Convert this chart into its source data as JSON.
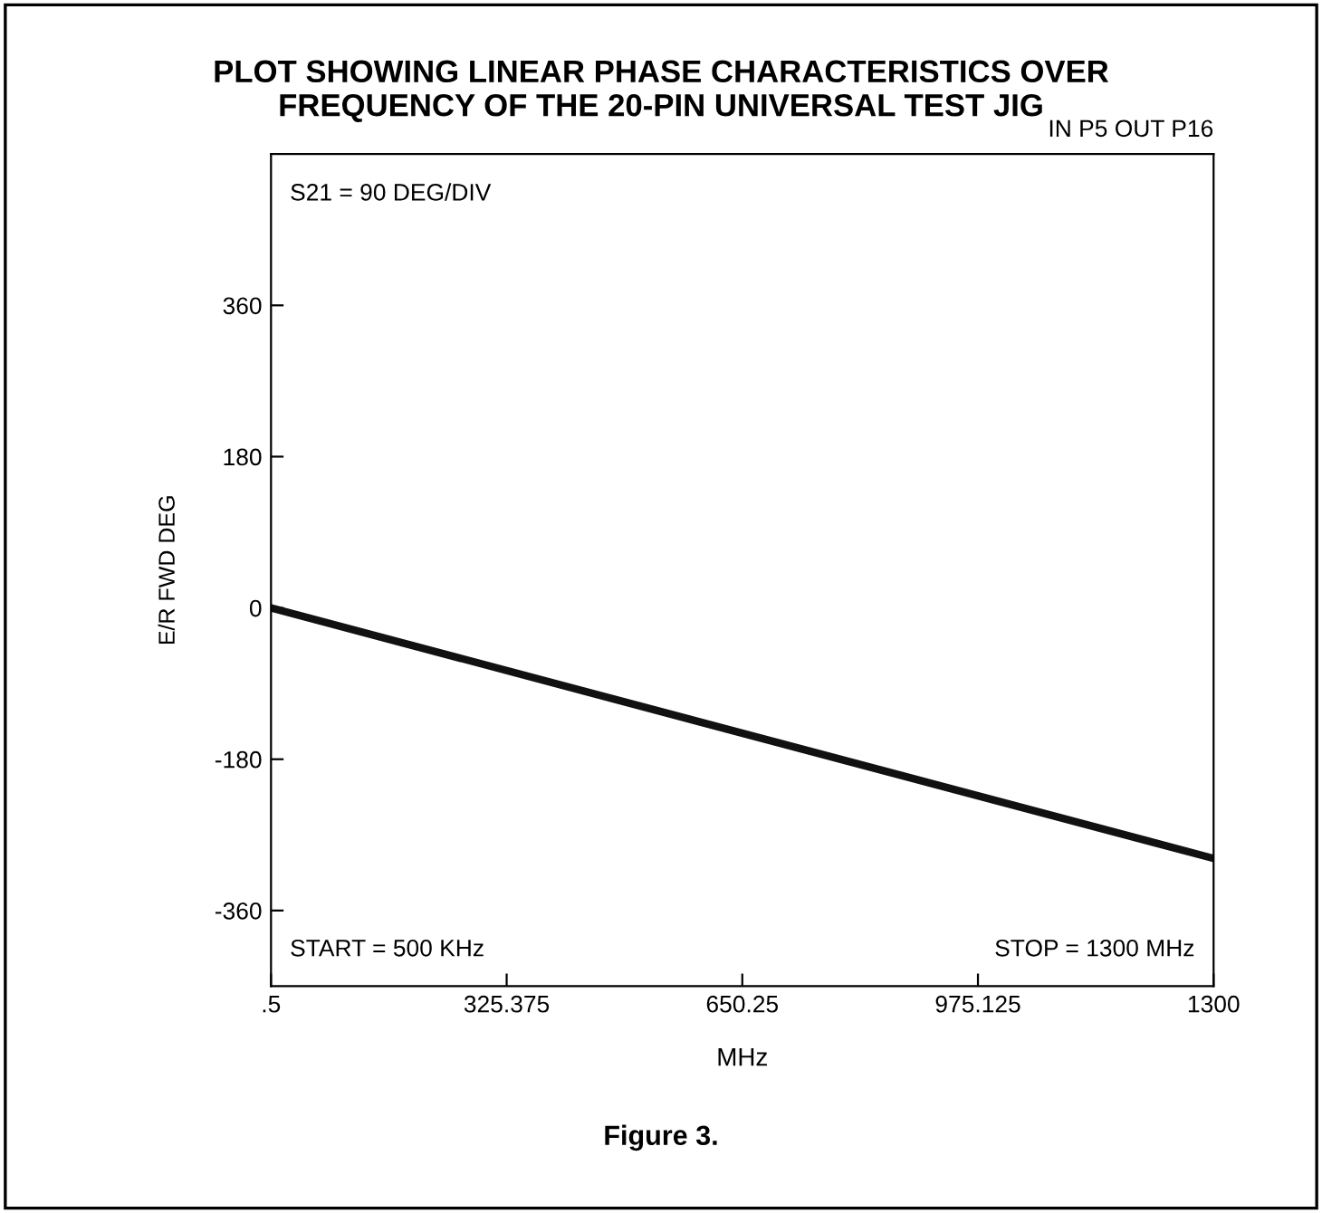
{
  "chart_data": {
    "type": "line",
    "title": "PLOT SHOWING LINEAR PHASE CHARACTERISTICS OVER\nFREQUENCY OF THE 20-PIN UNIVERSAL TEST JIG",
    "xlabel": "MHz",
    "ylabel": "E/R FWD DEG",
    "x": [
      0.5,
      1300
    ],
    "series": [
      {
        "color": "#111111",
        "values": [
          0,
          -298
        ]
      }
    ],
    "xlim": [
      0.5,
      1300
    ],
    "xticks": [
      {
        "value": 0.5,
        "label": ".5"
      },
      325.375,
      650.25,
      975.125,
      1300
    ],
    "ylim": [
      -450,
      540
    ],
    "yticks": [
      -360,
      -180,
      0,
      180,
      360
    ],
    "grid": false,
    "legend": false,
    "marker": "none",
    "line_style": "solid",
    "annotations": [
      "IN P5 OUT P16",
      "S21 = 90 DEG/DIV",
      "START = 500 KHz",
      "STOP = 1300 MHz",
      "Figure 3."
    ]
  }
}
